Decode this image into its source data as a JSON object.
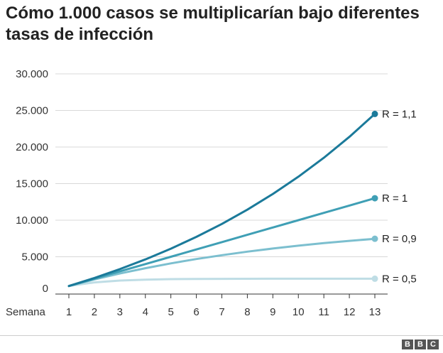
{
  "title": "Cómo 1.000 casos se multiplicarían bajo diferentes tasas de infección",
  "logo": [
    "B",
    "B",
    "C"
  ],
  "chart_data": {
    "type": "line",
    "title": "Cómo 1.000 casos se multiplicarían bajo diferentes tasas de infección",
    "xlabel": "Semana",
    "ylabel": "",
    "x": [
      1,
      2,
      3,
      4,
      5,
      6,
      7,
      8,
      9,
      10,
      11,
      12,
      13
    ],
    "ylim": [
      0,
      30000
    ],
    "yticks": [
      0,
      5000,
      10000,
      15000,
      20000,
      25000,
      30000
    ],
    "ytick_labels": [
      "0",
      "5.000",
      "10.000",
      "15.000",
      "20.000",
      "25.000",
      "30.000"
    ],
    "grid": true,
    "series": [
      {
        "name": "R = 1,1",
        "color": "#1b7a9a",
        "values": [
          1000,
          2100,
          3310,
          4641,
          6105,
          7716,
          9487,
          11436,
          13579,
          15937,
          18531,
          21384,
          24523
        ]
      },
      {
        "name": "R = 1",
        "color": "#3f9fb5",
        "values": [
          1000,
          2000,
          3000,
          4000,
          5000,
          6000,
          7000,
          8000,
          9000,
          10000,
          11000,
          12000,
          13000
        ]
      },
      {
        "name": "R = 0,9",
        "color": "#7cbfcf",
        "values": [
          1000,
          1900,
          2710,
          3439,
          4095,
          4686,
          5217,
          5695,
          6126,
          6513,
          6862,
          7176,
          7458
        ]
      },
      {
        "name": "R = 0,5",
        "color": "#bfdde5",
        "values": [
          1000,
          1500,
          1750,
          1875,
          1938,
          1969,
          1984,
          1992,
          1996,
          1998,
          1999,
          2000,
          2000
        ]
      }
    ]
  }
}
